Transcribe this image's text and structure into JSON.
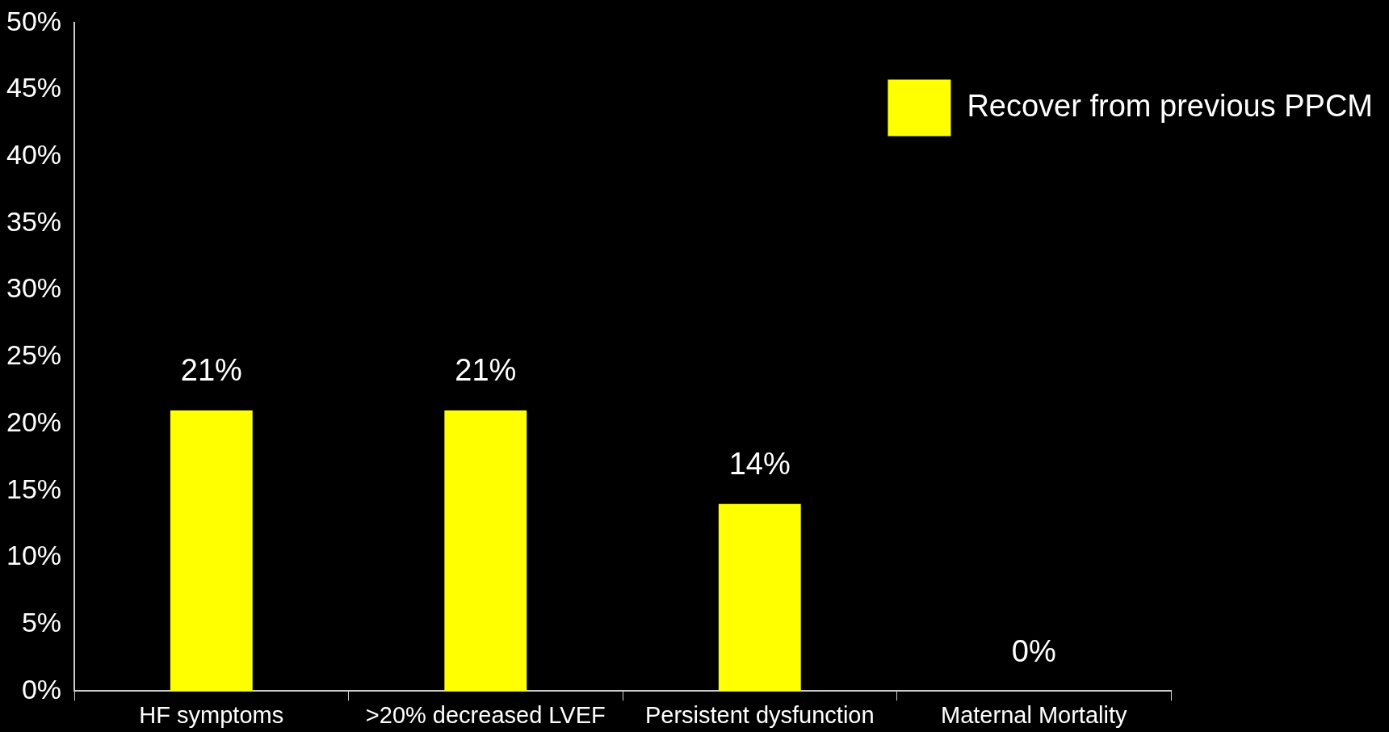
{
  "chart_data": {
    "type": "bar",
    "categories": [
      "HF symptoms",
      ">20% decreased LVEF",
      "Persistent dysfunction",
      "Maternal Mortality"
    ],
    "series": [
      {
        "name": "Recover from previous PPCM",
        "color": "#ffff00",
        "values": [
          21,
          21,
          14,
          0
        ]
      }
    ],
    "value_labels": [
      "21%",
      "21%",
      "14%",
      "0%"
    ],
    "ylim": [
      0,
      50
    ],
    "yticks": [
      {
        "value": 0,
        "label": "0%"
      },
      {
        "value": 5,
        "label": "5%"
      },
      {
        "value": 10,
        "label": "10%"
      },
      {
        "value": 15,
        "label": "15%"
      },
      {
        "value": 20,
        "label": "20%"
      },
      {
        "value": 25,
        "label": "25%"
      },
      {
        "value": 30,
        "label": "30%"
      },
      {
        "value": 35,
        "label": "35%"
      },
      {
        "value": 40,
        "label": "40%"
      },
      {
        "value": 45,
        "label": "45%"
      },
      {
        "value": 50,
        "label": "50%"
      }
    ],
    "grid": false,
    "legend": "top right"
  }
}
